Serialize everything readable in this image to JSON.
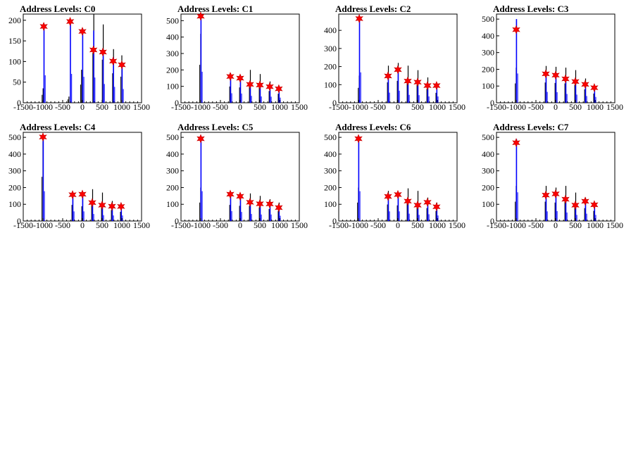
{
  "chart_data": [
    {
      "type": "bar",
      "title": "Address Levels: C0",
      "xlim": [
        -1500,
        1500
      ],
      "ylim": [
        0,
        215
      ],
      "xticks": [
        -1500,
        -1000,
        -500,
        0,
        500,
        1000,
        1500
      ],
      "yticks": [
        0,
        50,
        100,
        150,
        200
      ],
      "blue_peaks": [
        [
          -980,
          190
        ],
        [
          -310,
          200
        ],
        [
          0,
          180
        ],
        [
          280,
          175
        ],
        [
          520,
          130
        ],
        [
          780,
          110
        ],
        [
          1000,
          95
        ]
      ],
      "black_peaks": [
        [
          -985,
          35
        ],
        [
          -330,
          15
        ],
        [
          -10,
          80
        ],
        [
          300,
          220
        ],
        [
          540,
          190
        ],
        [
          800,
          130
        ],
        [
          1010,
          115
        ]
      ],
      "markers": [
        [
          -980,
          185
        ],
        [
          -310,
          197
        ],
        [
          0,
          173
        ],
        [
          280,
          128
        ],
        [
          520,
          123
        ],
        [
          780,
          101
        ],
        [
          1000,
          92
        ]
      ]
    },
    {
      "type": "bar",
      "title": "Address Levels: C1",
      "xlim": [
        -1500,
        1500
      ],
      "ylim": [
        0,
        540
      ],
      "xticks": [
        -1500,
        -1000,
        -500,
        0,
        500,
        1000,
        1500
      ],
      "yticks": [
        0,
        100,
        200,
        300,
        400,
        500
      ],
      "blue_peaks": [
        [
          -1000,
          540
        ],
        [
          -250,
          165
        ],
        [
          0,
          160
        ],
        [
          250,
          120
        ],
        [
          500,
          110
        ],
        [
          750,
          105
        ],
        [
          980,
          90
        ]
      ],
      "black_peaks": [
        [
          -990,
          420
        ],
        [
          -230,
          180
        ],
        [
          20,
          170
        ],
        [
          270,
          200
        ],
        [
          520,
          175
        ],
        [
          770,
          130
        ],
        [
          1000,
          100
        ]
      ],
      "markers": [
        [
          -1000,
          527
        ],
        [
          -250,
          160
        ],
        [
          0,
          150
        ],
        [
          250,
          112
        ],
        [
          500,
          108
        ],
        [
          750,
          98
        ],
        [
          980,
          85
        ]
      ]
    },
    {
      "type": "bar",
      "title": "Address Levels: C2",
      "xlim": [
        -1500,
        1500
      ],
      "ylim": [
        0,
        490
      ],
      "xticks": [
        -1500,
        -1000,
        -500,
        0,
        500,
        1000,
        1500
      ],
      "yticks": [
        0,
        100,
        200,
        300,
        400
      ],
      "blue_peaks": [
        [
          -980,
          480
        ],
        [
          -250,
          160
        ],
        [
          0,
          190
        ],
        [
          250,
          125
        ],
        [
          500,
          120
        ],
        [
          750,
          100
        ],
        [
          980,
          100
        ]
      ],
      "black_peaks": [
        [
          -970,
          150
        ],
        [
          -230,
          205
        ],
        [
          20,
          220
        ],
        [
          270,
          205
        ],
        [
          520,
          180
        ],
        [
          770,
          140
        ],
        [
          1000,
          100
        ]
      ],
      "markers": [
        [
          -980,
          465
        ],
        [
          -250,
          148
        ],
        [
          0,
          183
        ],
        [
          250,
          120
        ],
        [
          500,
          114
        ],
        [
          750,
          95
        ],
        [
          980,
          95
        ]
      ]
    },
    {
      "type": "bar",
      "title": "Address Levels: C3",
      "xlim": [
        -1500,
        1500
      ],
      "ylim": [
        0,
        530
      ],
      "xticks": [
        -1500,
        -1000,
        -500,
        0,
        500,
        1000,
        1500
      ],
      "yticks": [
        0,
        100,
        200,
        300,
        400,
        500
      ],
      "blue_peaks": [
        [
          -1000,
          500
        ],
        [
          -250,
          185
        ],
        [
          0,
          180
        ],
        [
          250,
          150
        ],
        [
          500,
          140
        ],
        [
          750,
          115
        ],
        [
          980,
          100
        ]
      ],
      "black_peaks": [
        [
          -990,
          210
        ],
        [
          -230,
          220
        ],
        [
          20,
          215
        ],
        [
          270,
          210
        ],
        [
          520,
          195
        ],
        [
          770,
          145
        ],
        [
          1000,
          100
        ]
      ],
      "markers": [
        [
          -1000,
          437
        ],
        [
          -250,
          173
        ],
        [
          0,
          165
        ],
        [
          250,
          143
        ],
        [
          500,
          127
        ],
        [
          750,
          110
        ],
        [
          980,
          90
        ]
      ]
    },
    {
      "type": "bar",
      "title": "Address Levels: C4",
      "xlim": [
        -1500,
        1500
      ],
      "ylim": [
        0,
        530
      ],
      "xticks": [
        -1500,
        -1000,
        -500,
        0,
        500,
        1000,
        1500
      ],
      "yticks": [
        0,
        100,
        200,
        300,
        400,
        500
      ],
      "blue_peaks": [
        [
          -1000,
          510
        ],
        [
          -250,
          165
        ],
        [
          0,
          165
        ],
        [
          250,
          120
        ],
        [
          500,
          100
        ],
        [
          750,
          95
        ],
        [
          980,
          95
        ]
      ],
      "black_peaks": [
        [
          -990,
          480
        ],
        [
          -230,
          175
        ],
        [
          20,
          160
        ],
        [
          270,
          190
        ],
        [
          520,
          170
        ],
        [
          770,
          120
        ],
        [
          1000,
          100
        ]
      ],
      "markers": [
        [
          -1000,
          502
        ],
        [
          -250,
          157
        ],
        [
          0,
          160
        ],
        [
          250,
          110
        ],
        [
          500,
          95
        ],
        [
          750,
          88
        ],
        [
          980,
          87
        ]
      ]
    },
    {
      "type": "bar",
      "title": "Address Levels: C5",
      "xlim": [
        -1500,
        1500
      ],
      "ylim": [
        0,
        530
      ],
      "xticks": [
        -1500,
        -1000,
        -500,
        0,
        500,
        1000,
        1500
      ],
      "yticks": [
        0,
        100,
        200,
        300,
        400,
        500
      ],
      "blue_peaks": [
        [
          -1000,
          510
        ],
        [
          -250,
          170
        ],
        [
          0,
          155
        ],
        [
          250,
          120
        ],
        [
          500,
          110
        ],
        [
          750,
          110
        ],
        [
          980,
          90
        ]
      ],
      "black_peaks": [
        [
          -990,
          200
        ],
        [
          -230,
          175
        ],
        [
          20,
          165
        ],
        [
          270,
          165
        ],
        [
          520,
          150
        ],
        [
          770,
          130
        ],
        [
          1000,
          110
        ]
      ],
      "markers": [
        [
          -1000,
          492
        ],
        [
          -250,
          160
        ],
        [
          0,
          148
        ],
        [
          250,
          112
        ],
        [
          500,
          103
        ],
        [
          750,
          102
        ],
        [
          980,
          80
        ]
      ]
    },
    {
      "type": "bar",
      "title": "Address Levels: C6",
      "xlim": [
        -1500,
        1500
      ],
      "ylim": [
        0,
        530
      ],
      "xticks": [
        -1500,
        -1000,
        -500,
        0,
        500,
        1000,
        1500
      ],
      "yticks": [
        0,
        100,
        200,
        300,
        400,
        500
      ],
      "blue_peaks": [
        [
          -1000,
          510
        ],
        [
          -250,
          165
        ],
        [
          0,
          165
        ],
        [
          250,
          125
        ],
        [
          500,
          105
        ],
        [
          750,
          115
        ],
        [
          980,
          95
        ]
      ],
      "black_peaks": [
        [
          -990,
          200
        ],
        [
          -230,
          180
        ],
        [
          20,
          170
        ],
        [
          270,
          195
        ],
        [
          520,
          180
        ],
        [
          770,
          140
        ],
        [
          1000,
          110
        ]
      ],
      "markers": [
        [
          -1000,
          492
        ],
        [
          -250,
          147
        ],
        [
          0,
          158
        ],
        [
          250,
          119
        ],
        [
          500,
          95
        ],
        [
          750,
          112
        ],
        [
          980,
          85
        ]
      ]
    },
    {
      "type": "bar",
      "title": "Address Levels: C7",
      "xlim": [
        -1500,
        1500
      ],
      "ylim": [
        0,
        530
      ],
      "xticks": [
        -1500,
        -1000,
        -500,
        0,
        500,
        1000,
        1500
      ],
      "yticks": [
        0,
        100,
        200,
        300,
        400,
        500
      ],
      "blue_peaks": [
        [
          -1000,
          490
        ],
        [
          -250,
          165
        ],
        [
          0,
          170
        ],
        [
          250,
          145
        ],
        [
          500,
          105
        ],
        [
          750,
          125
        ],
        [
          980,
          105
        ]
      ],
      "black_peaks": [
        [
          -990,
          210
        ],
        [
          -230,
          210
        ],
        [
          20,
          200
        ],
        [
          270,
          210
        ],
        [
          520,
          170
        ],
        [
          770,
          140
        ],
        [
          1000,
          110
        ]
      ],
      "markers": [
        [
          -1000,
          468
        ],
        [
          -250,
          155
        ],
        [
          0,
          162
        ],
        [
          250,
          130
        ],
        [
          500,
          95
        ],
        [
          750,
          118
        ],
        [
          980,
          97
        ]
      ]
    }
  ],
  "colors": {
    "blue": "#0000ff",
    "black": "#000000",
    "marker_fill": "#ff0000",
    "marker_stroke": "#cc0000"
  }
}
